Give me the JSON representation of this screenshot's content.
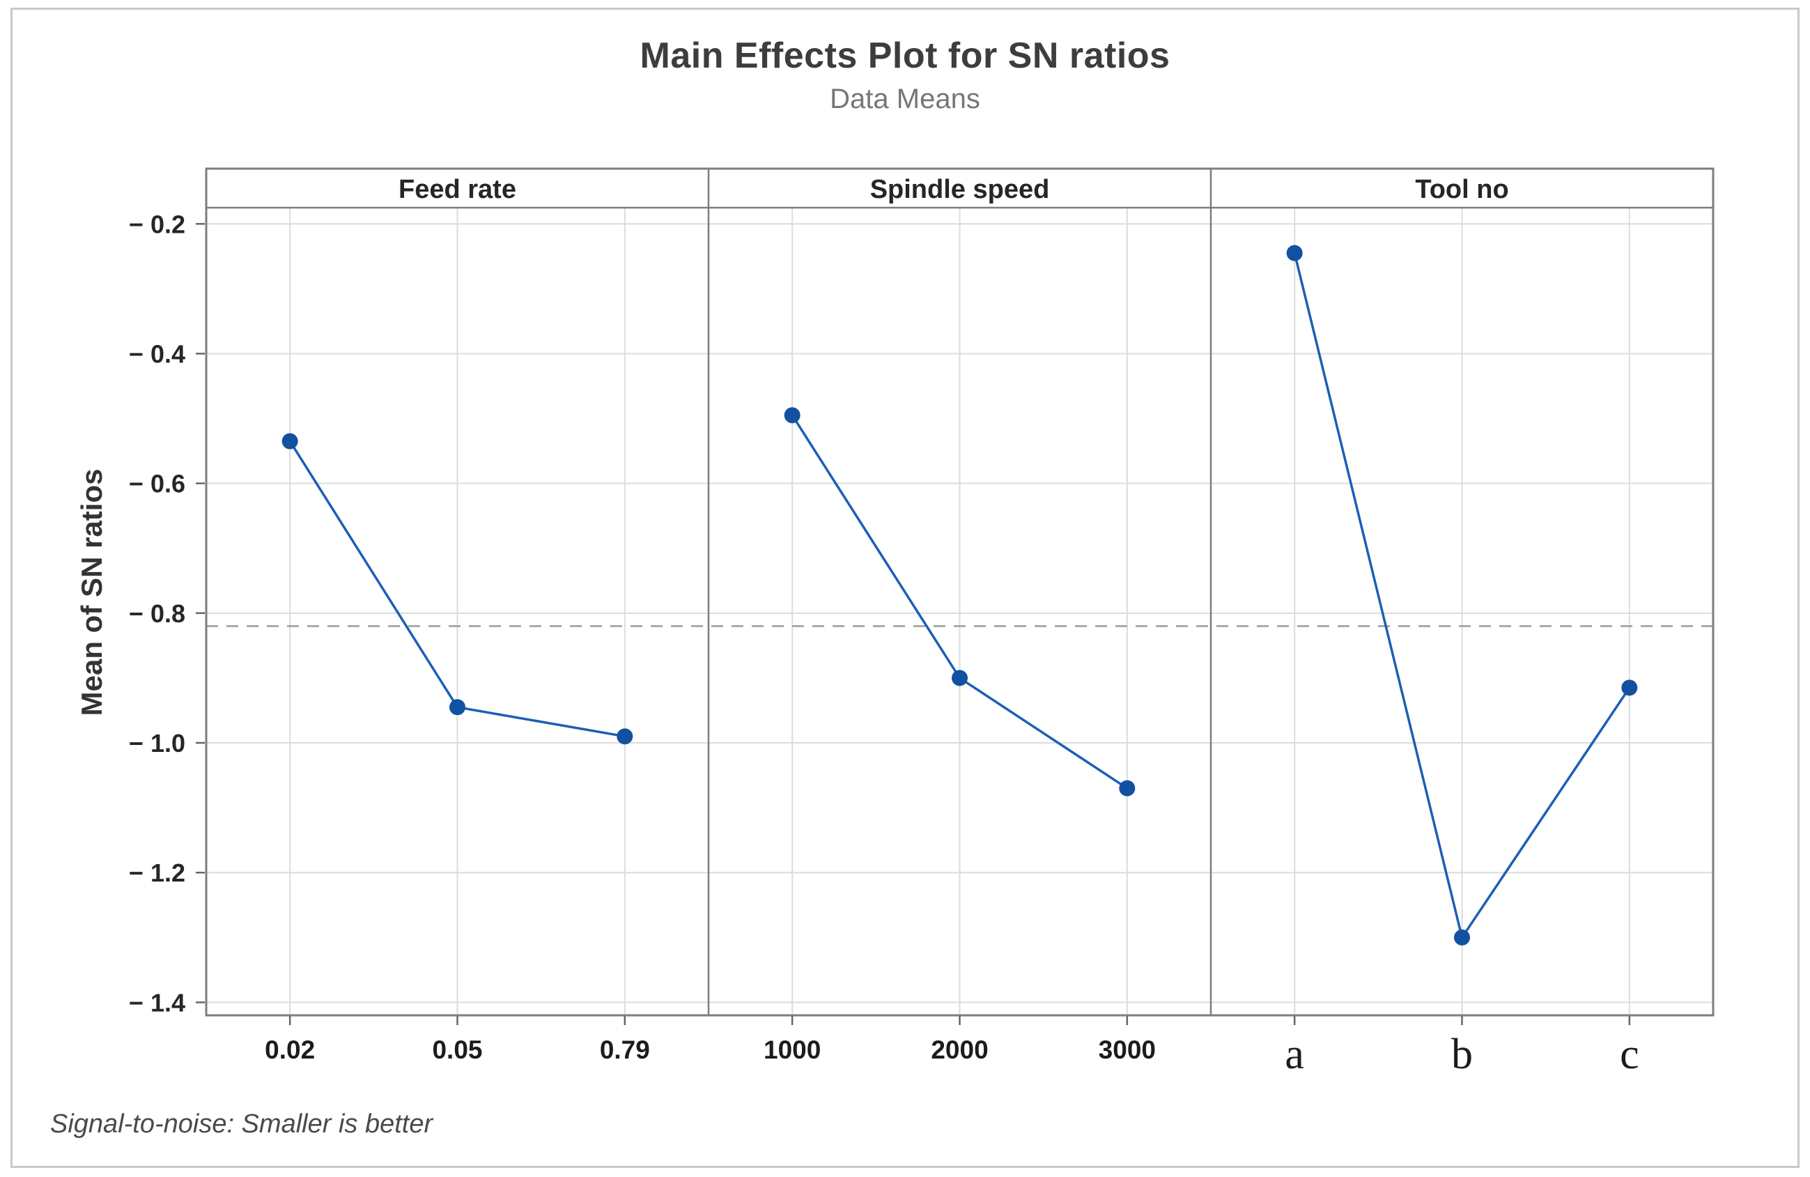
{
  "figure": {
    "title": "Main Effects Plot for SN ratios",
    "subtitle": "Data Means",
    "y_axis_title": "Mean of SN ratios",
    "footnote": "Signal-to-noise: Smaller is better"
  },
  "chart_data": {
    "type": "line",
    "title": "Main Effects Plot for SN ratios",
    "subtitle": "Data Means",
    "ylabel": "Mean of SN ratios",
    "xlabel": "",
    "footnote": "Signal-to-noise: Smaller is better",
    "legend": "none",
    "grid": true,
    "ylim": [
      -1.42,
      -0.175
    ],
    "yticks": [
      -0.2,
      -0.4,
      -0.6,
      -0.8,
      -1.0,
      -1.2,
      -1.4
    ],
    "ytick_label_format": "minus space absolute, one decimal",
    "reference_line_grand_mean": -0.82,
    "panels": [
      {
        "label": "Feed rate",
        "categories": [
          "0.02",
          "0.05",
          "0.79"
        ],
        "values": [
          -0.535,
          -0.945,
          -0.99
        ],
        "tick_style": "sans-bold"
      },
      {
        "label": "Spindle speed",
        "categories": [
          "1000",
          "2000",
          "3000"
        ],
        "values": [
          -0.495,
          -0.9,
          -1.07
        ],
        "tick_style": "sans-bold"
      },
      {
        "label": "Tool no",
        "categories": [
          "a",
          "b",
          "c"
        ],
        "values": [
          -0.245,
          -1.3,
          -0.915
        ],
        "tick_style": "serif"
      }
    ],
    "colors": {
      "line": "#1C5FB5",
      "marker": "#11519F",
      "grid": "#DCDCDC",
      "panel_border": "#7D7D7D",
      "reference": "#9C9C9C",
      "tick": "#666666",
      "tick_label": "#262626",
      "header_label": "#262626"
    }
  }
}
